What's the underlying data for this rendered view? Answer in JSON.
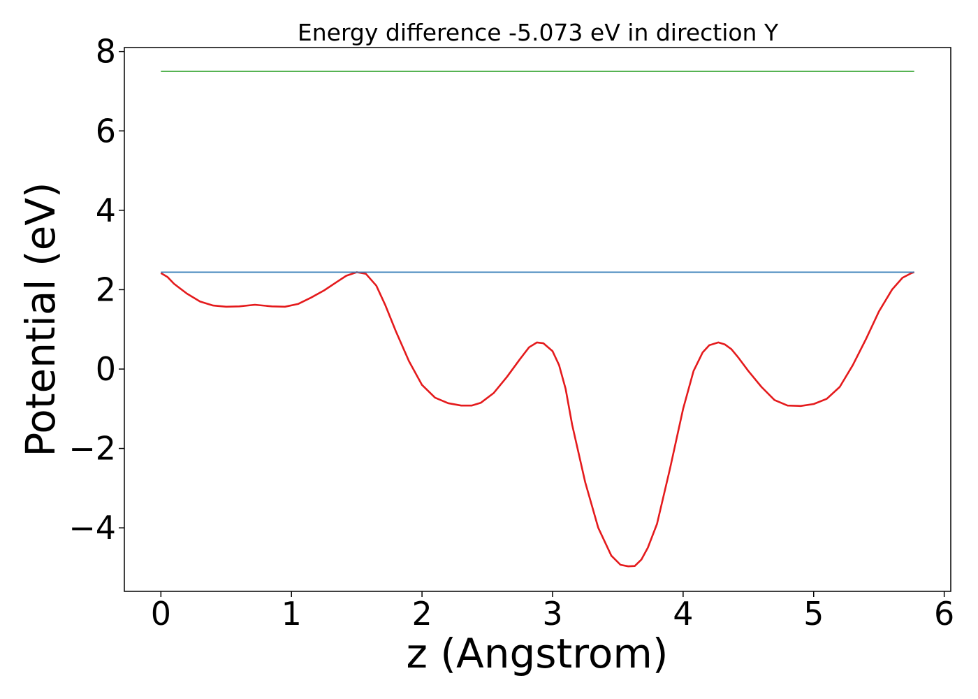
{
  "chart_data": {
    "type": "line",
    "title": "Energy difference -5.073 eV in direction Y",
    "xlabel": "z (Angstrom)",
    "ylabel": "Potential (eV)",
    "xlim": [
      -0.28,
      6.05
    ],
    "ylim": [
      -5.6,
      8.1
    ],
    "xticks": [
      0,
      1,
      2,
      3,
      4,
      5,
      6
    ],
    "yticks": [
      -4,
      -2,
      0,
      2,
      4,
      6,
      8
    ],
    "xtick_labels": [
      "0",
      "1",
      "2",
      "3",
      "4",
      "5",
      "6"
    ],
    "ytick_labels": [
      "−4",
      "−2",
      "0",
      "2",
      "4",
      "6",
      "8"
    ],
    "grid": false,
    "series": [
      {
        "color": "#e41a1c",
        "x": [
          0,
          0.05,
          0.1,
          0.2,
          0.3,
          0.4,
          0.5,
          0.6,
          0.72,
          0.85,
          0.95,
          1.05,
          1.15,
          1.25,
          1.35,
          1.42,
          1.5,
          1.57,
          1.65,
          1.72,
          1.8,
          1.9,
          2.0,
          2.1,
          2.2,
          2.3,
          2.38,
          2.45,
          2.55,
          2.65,
          2.75,
          2.82,
          2.88,
          2.93,
          3.0,
          3.05,
          3.1,
          3.15,
          3.25,
          3.35,
          3.45,
          3.52,
          3.58,
          3.63,
          3.68,
          3.73,
          3.8,
          3.9,
          4.0,
          4.08,
          4.15,
          4.2,
          4.27,
          4.32,
          4.37,
          4.42,
          4.5,
          4.6,
          4.7,
          4.8,
          4.9,
          5.0,
          5.1,
          5.2,
          5.3,
          5.4,
          5.5,
          5.6,
          5.68,
          5.75,
          5.77
        ],
        "y": [
          2.42,
          2.32,
          2.15,
          1.9,
          1.7,
          1.6,
          1.57,
          1.58,
          1.62,
          1.58,
          1.57,
          1.64,
          1.8,
          1.98,
          2.2,
          2.35,
          2.44,
          2.4,
          2.1,
          1.6,
          0.95,
          0.2,
          -0.4,
          -0.72,
          -0.86,
          -0.92,
          -0.92,
          -0.85,
          -0.6,
          -0.2,
          0.25,
          0.55,
          0.67,
          0.65,
          0.45,
          0.1,
          -0.5,
          -1.4,
          -2.85,
          -4.0,
          -4.7,
          -4.93,
          -4.97,
          -4.96,
          -4.8,
          -4.5,
          -3.9,
          -2.5,
          -1.0,
          -0.05,
          0.42,
          0.6,
          0.67,
          0.62,
          0.5,
          0.3,
          -0.05,
          -0.45,
          -0.78,
          -0.92,
          -0.93,
          -0.88,
          -0.75,
          -0.45,
          0.1,
          0.75,
          1.45,
          2.0,
          2.3,
          2.42,
          2.44
        ]
      },
      {
        "color": "#377eb8",
        "x": [
          0,
          5.77
        ],
        "y": [
          2.44,
          2.44
        ]
      },
      {
        "color": "#4daf4a",
        "x": [
          0,
          5.77
        ],
        "y": [
          7.5,
          7.5
        ]
      }
    ]
  }
}
